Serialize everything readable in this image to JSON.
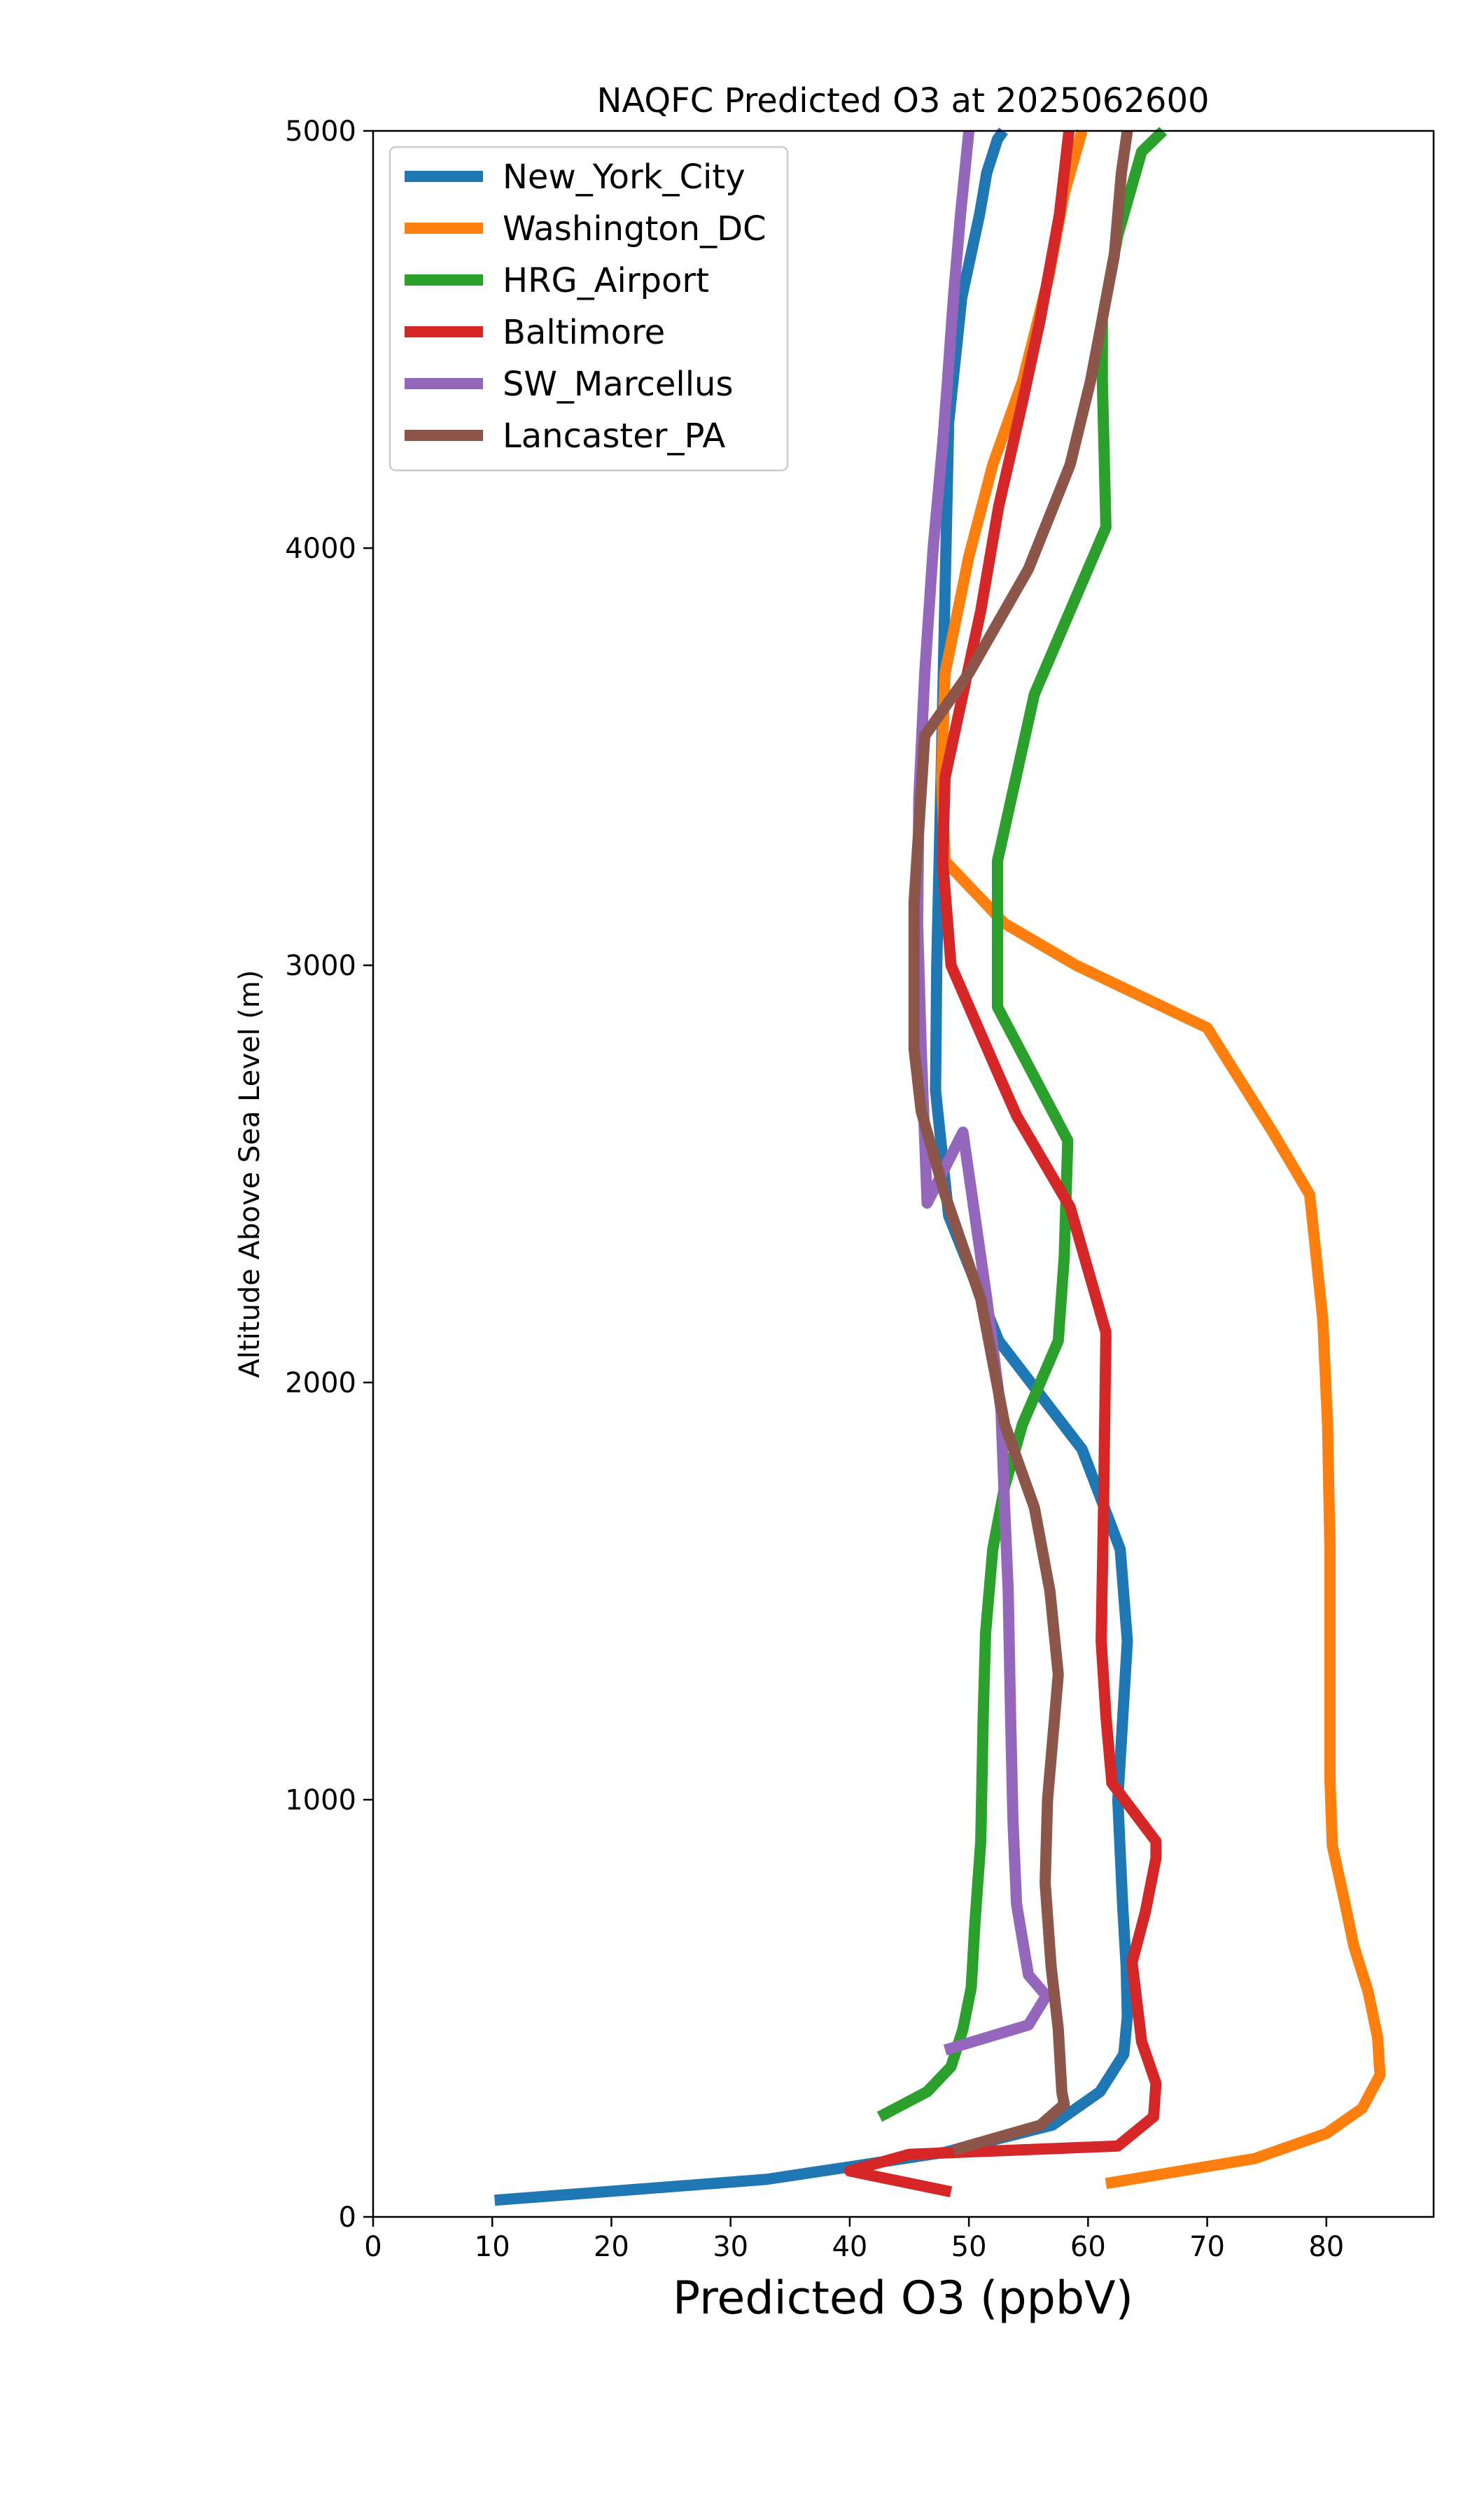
{
  "chart_data": {
    "type": "line",
    "title": "NAQFC Predicted O3 at 2025062600",
    "xlabel": "Predicted O3 (ppbV)",
    "ylabel": "Altitude Above Sea Level (m)",
    "xlim": [
      0,
      89
    ],
    "ylim": [
      0,
      5000
    ],
    "xticks": [
      0,
      10,
      20,
      30,
      40,
      50,
      60,
      70,
      80
    ],
    "yticks": [
      0,
      1000,
      2000,
      3000,
      4000,
      5000
    ],
    "grid": false,
    "legend_position": "top-left",
    "series": [
      {
        "name": "New_York_City",
        "color": "#1f77b4",
        "x": [
          10.2,
          33,
          40,
          48,
          57,
          61,
          63,
          63.3,
          63.2,
          62.9,
          62.5,
          63.3,
          62.7,
          59.5,
          52.5,
          48.3,
          47.2,
          47.3,
          47.7,
          48,
          48.3,
          49.4,
          50.9,
          51.5,
          52.4,
          52.9
        ],
        "y": [
          40,
          90,
          120,
          155,
          220,
          300,
          390,
          480,
          600,
          750,
          1000,
          1380,
          1600,
          1840,
          2100,
          2400,
          2700,
          3000,
          3500,
          3900,
          4300,
          4600,
          4800,
          4900,
          4980,
          5000
        ]
      },
      {
        "name": "Washington_DC",
        "color": "#ff7f0e",
        "x": [
          61.5,
          74,
          80,
          83,
          84.5,
          84.3,
          83.5,
          82.3,
          81.5,
          80.5,
          80.3,
          80.3,
          80.1,
          79.7,
          78.6,
          75.5,
          70,
          59,
          53,
          48,
          47.7,
          48,
          50,
          52,
          54.5,
          56.7,
          58,
          59.5
        ],
        "y": [
          80,
          140,
          200,
          260,
          340,
          430,
          540,
          650,
          760,
          890,
          1050,
          1600,
          1900,
          2150,
          2450,
          2600,
          2850,
          3000,
          3100,
          3250,
          3450,
          3700,
          3980,
          4200,
          4400,
          4650,
          4850,
          5000
        ]
      },
      {
        "name": "HRG_Airport",
        "color": "#2ca02c",
        "x": [
          42.5,
          46.5,
          48.5,
          49.5,
          50.2,
          50.5,
          51,
          51.2,
          51.4,
          52,
          53,
          54.5,
          57.5,
          58,
          58.3,
          52.4,
          52.4,
          52.4,
          55.5,
          61.5,
          61.2,
          61.2,
          62.5,
          64.5,
          66.3
        ],
        "y": [
          240,
          300,
          360,
          450,
          550,
          700,
          900,
          1200,
          1400,
          1600,
          1750,
          1900,
          2100,
          2300,
          2580,
          2900,
          3000,
          3250,
          3650,
          4050,
          4400,
          4550,
          4750,
          4950,
          5000
        ]
      },
      {
        "name": "Baltimore",
        "color": "#d62728",
        "x": [
          48.5,
          40,
          45,
          62.5,
          65.5,
          65.7,
          64.5,
          63.7,
          64.8,
          65.7,
          65.7,
          62,
          61.5,
          61.1,
          61.3,
          61.5,
          58.5,
          54,
          52.3,
          48.5,
          47.8,
          48,
          49.5,
          51,
          52.5,
          54.5,
          56,
          57.6,
          58.4
        ],
        "y": [
          60,
          110,
          150,
          170,
          240,
          320,
          420,
          610,
          730,
          860,
          900,
          1040,
          1200,
          1380,
          1700,
          2120,
          2420,
          2640,
          2750,
          3000,
          3250,
          3450,
          3650,
          3850,
          4100,
          4350,
          4550,
          4800,
          5000
        ]
      },
      {
        "name": "SW_Marcellus",
        "color": "#9467bd",
        "x": [
          48,
          55,
          56.5,
          55,
          54,
          53.7,
          53.5,
          53.3,
          53,
          52.7,
          51.5,
          49.5,
          46.5,
          46,
          45.7,
          45.8,
          46.3,
          47,
          47.8,
          48.2,
          48.7,
          49.3,
          50
        ],
        "y": [
          400,
          460,
          530,
          580,
          750,
          950,
          1200,
          1500,
          1700,
          1930,
          2200,
          2600,
          2430,
          2800,
          3100,
          3400,
          3700,
          4000,
          4250,
          4400,
          4600,
          4800,
          5000
        ]
      },
      {
        "name": "Lancaster_PA",
        "color": "#8c564b",
        "x": [
          48.7,
          56,
          58,
          57.8,
          57.5,
          56.9,
          56.4,
          56.6,
          57.5,
          56.8,
          55.5,
          53,
          51,
          48,
          46,
          45.4,
          45.4,
          46.3,
          50,
          55,
          58.5,
          60.2,
          62.2,
          62.8,
          63.3
        ],
        "y": [
          160,
          220,
          270,
          300,
          450,
          600,
          800,
          1000,
          1300,
          1500,
          1700,
          1900,
          2200,
          2450,
          2650,
          2800,
          3150,
          3550,
          3700,
          3950,
          4200,
          4400,
          4700,
          4900,
          5000
        ]
      }
    ]
  }
}
